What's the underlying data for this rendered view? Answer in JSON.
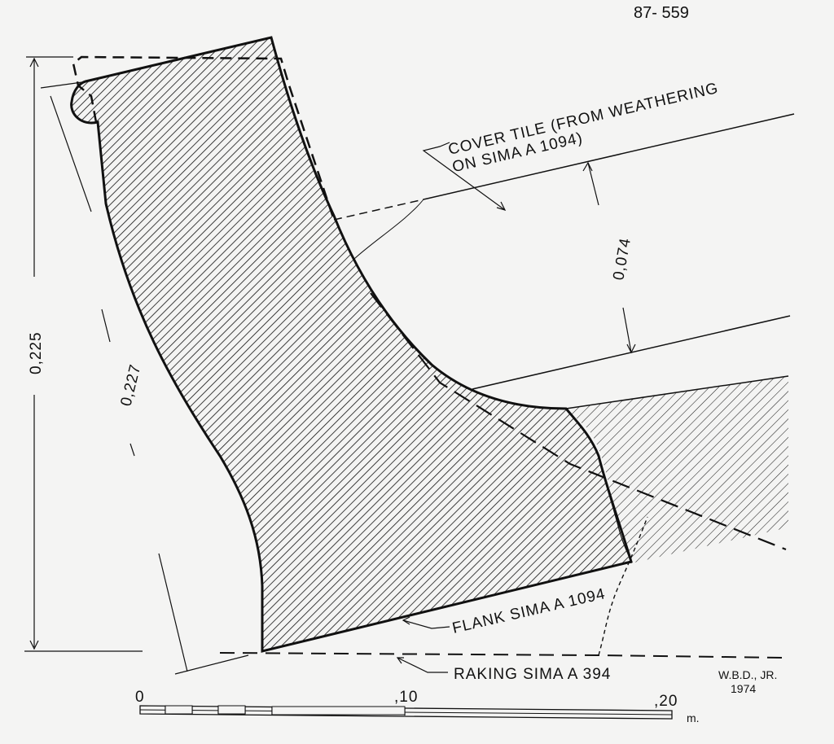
{
  "drawing_number": "87- 559",
  "labels": {
    "cover_tile_line1": "COVER TILE (FROM WEATHERING",
    "cover_tile_line2": "ON SIMA A 1094)",
    "flank_sima": "FLANK SIMA A 1094",
    "raking_sima": "RAKING SIMA A 394"
  },
  "dimensions": {
    "tile_gap": "0,074",
    "height_vertical": "0,225",
    "height_slant": "0,227"
  },
  "signature": {
    "author": "W.B.D., JR.",
    "year": "1974"
  },
  "scale_bar": {
    "tick_0": "0",
    "tick_10": ",10",
    "tick_20": ",20",
    "unit": "m."
  },
  "colors": {
    "ink": "#111111",
    "paper": "#f4f4f3"
  }
}
